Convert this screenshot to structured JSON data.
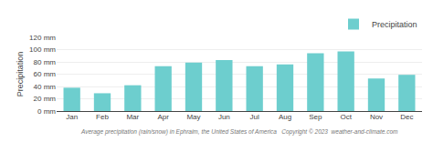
{
  "chart_data": {
    "type": "bar",
    "categories": [
      "Jan",
      "Feb",
      "Mar",
      "Apr",
      "May",
      "Jun",
      "Jul",
      "Aug",
      "Sep",
      "Oct",
      "Nov",
      "Dec"
    ],
    "series": [
      {
        "name": "Precipitation",
        "color": "#6dcece",
        "values": [
          38,
          29,
          42,
          73,
          79,
          83,
          73,
          76,
          94,
          97,
          53,
          59
        ]
      }
    ],
    "ylabel": "Precipitation",
    "ylim": [
      0,
      120
    ],
    "yticks": [
      {
        "value": 0,
        "label": "0 mm"
      },
      {
        "value": 20,
        "label": "20 mm"
      },
      {
        "value": 40,
        "label": "40 mm"
      },
      {
        "value": 60,
        "label": "60 mm"
      },
      {
        "value": 80,
        "label": "80 mm"
      },
      {
        "value": 100,
        "label": "100 mm"
      },
      {
        "value": 120,
        "label": "120 mm"
      }
    ],
    "grid": true,
    "legend": "upper right",
    "annotations": [
      "Average precipitation (rain/snow) in Ephraim, the United States of America   Copyright © 2023  weather-and-climate.com"
    ]
  }
}
